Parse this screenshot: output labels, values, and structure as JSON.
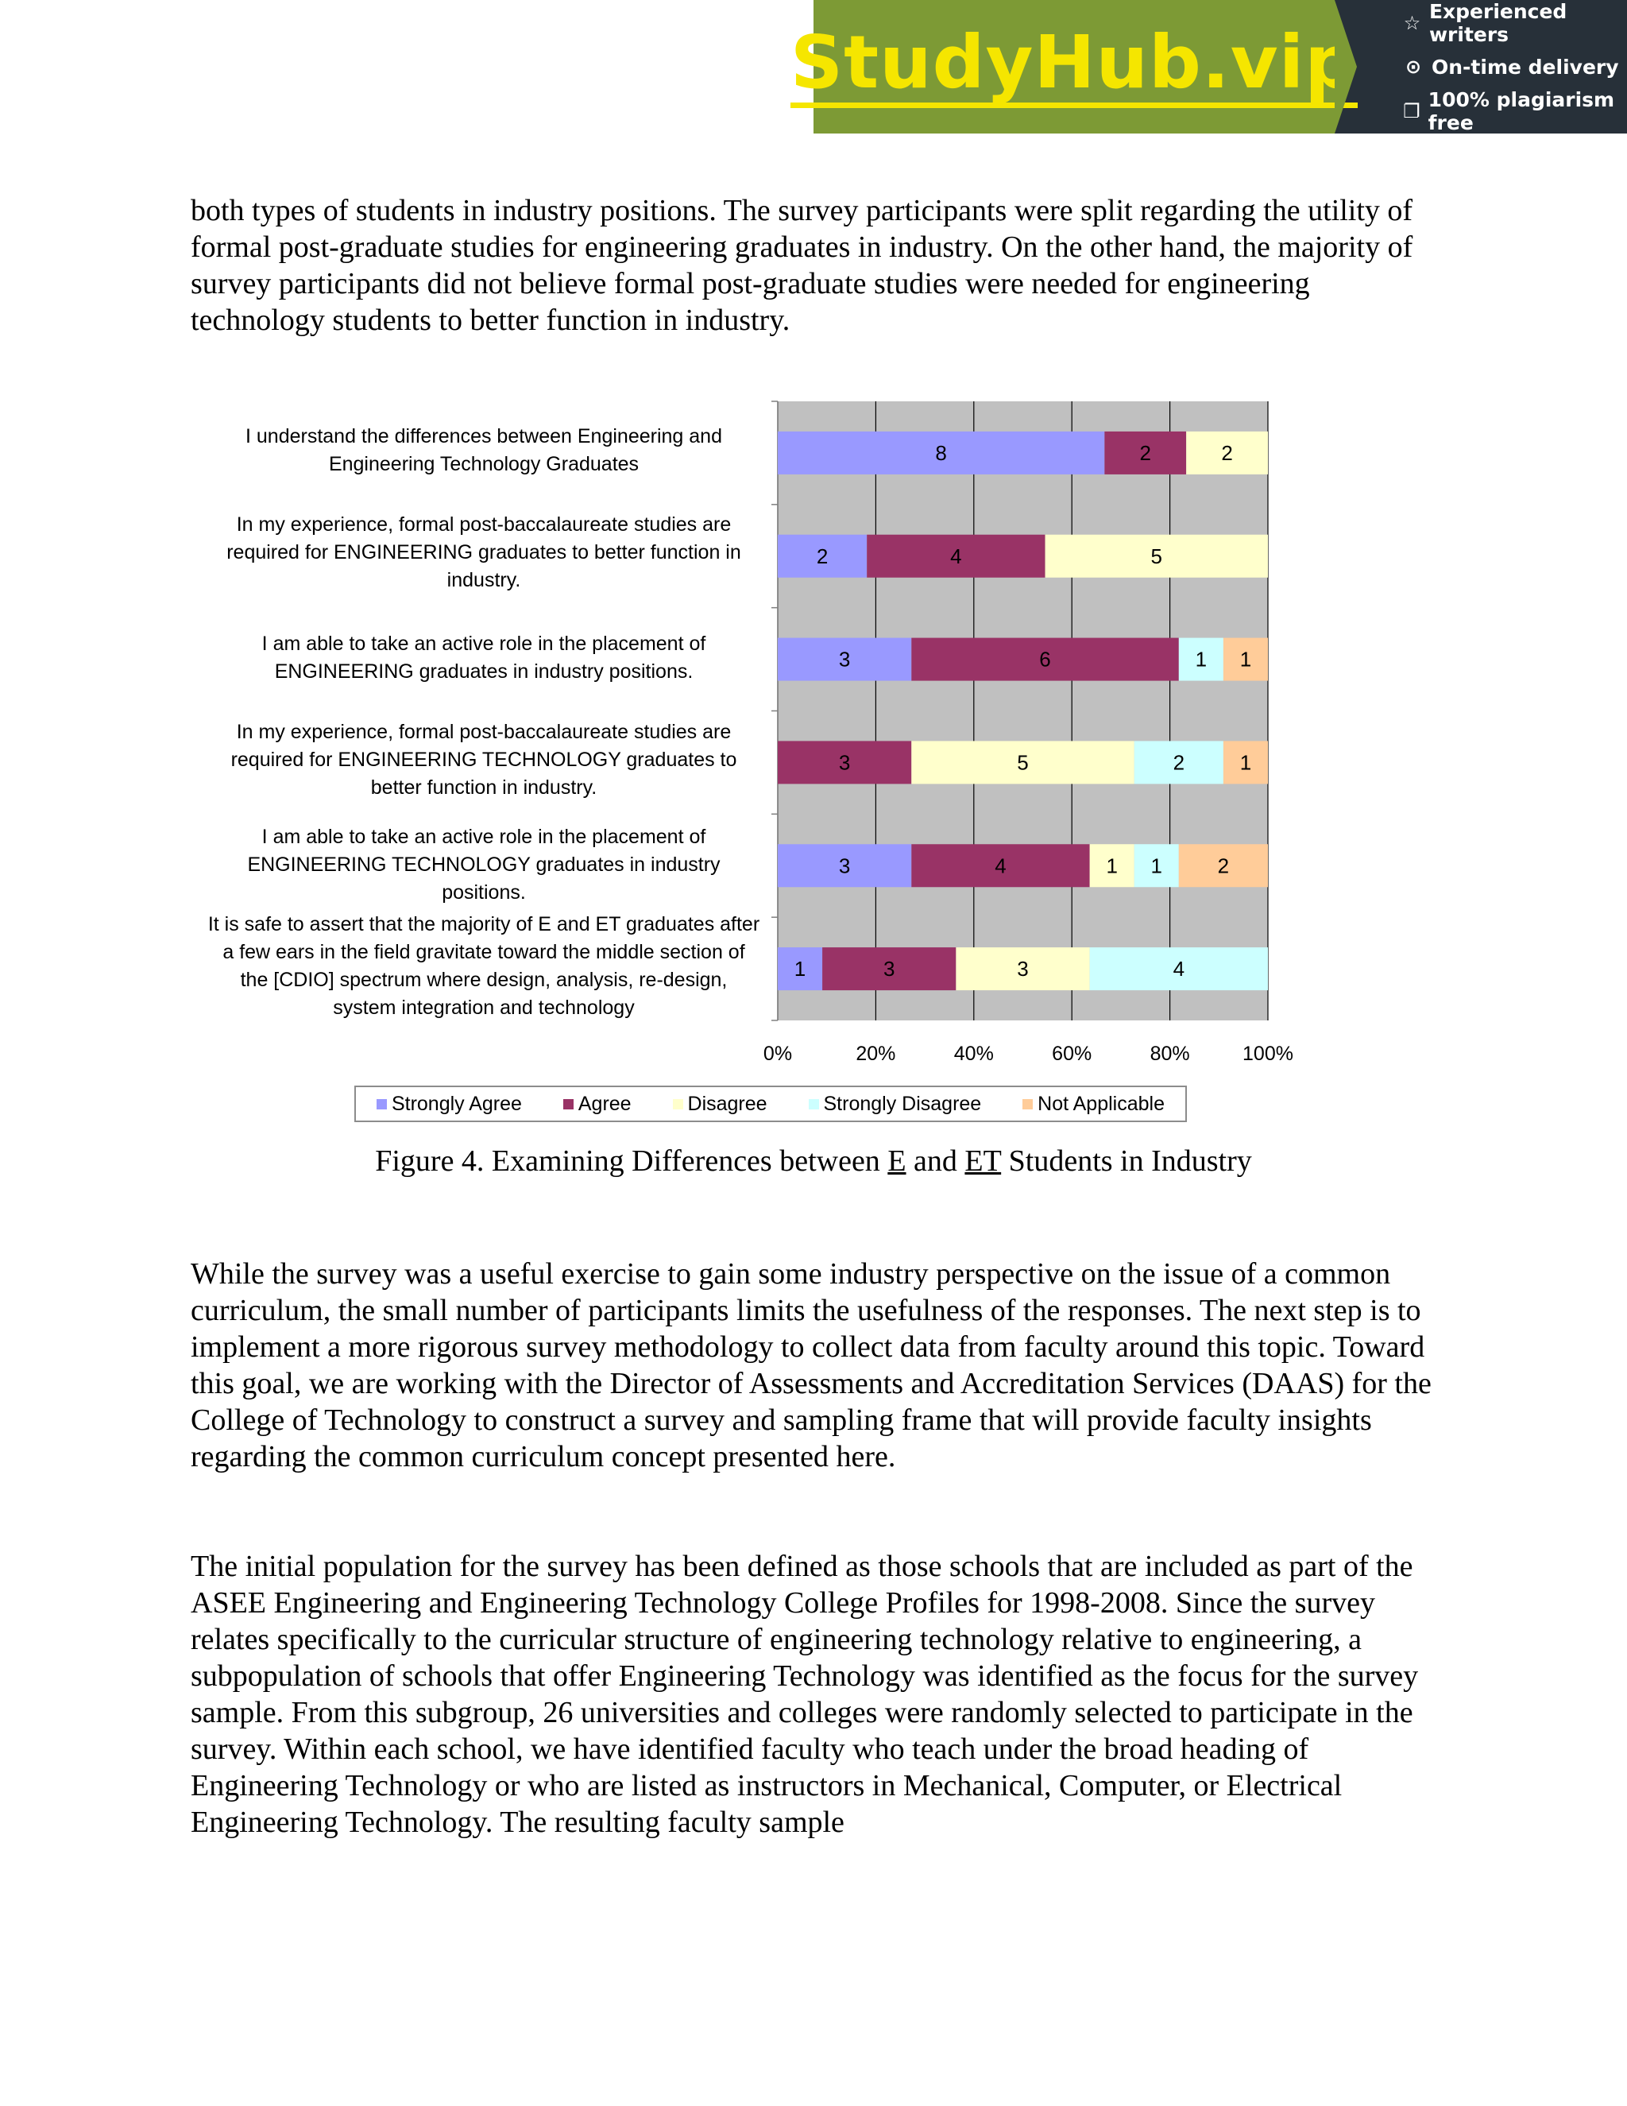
{
  "banner": {
    "logo": "StudyHub.vip",
    "features": [
      {
        "icon": "star-outline-icon",
        "glyph": "☆",
        "text": "Experienced writers"
      },
      {
        "icon": "clock-icon",
        "glyph": "⊙",
        "text": "On-time delivery"
      },
      {
        "icon": "copy-document-icon",
        "glyph": "❐",
        "text": "100% plagiarism free"
      }
    ]
  },
  "paragraphs": {
    "p1": "both types of students in industry positions. The survey participants were split regarding the utility of formal post-graduate studies for engineering graduates in industry. On the other hand, the majority of survey participants did not believe formal post-graduate studies were needed for engineering technology students to better function in industry.",
    "p2": "While the survey was a useful exercise to gain some industry perspective on the issue of a common curriculum, the small number of participants limits the usefulness of the responses. The next step is to implement a more rigorous survey methodology to collect data from faculty around this topic. Toward this goal, we are working with the Director of Assessments and Accreditation Services (DAAS) for the College of Technology to construct a survey and sampling frame that will provide faculty insights regarding the common curriculum concept presented here.",
    "p3": "The initial population for the survey has been defined as those schools that are included as part of the ASEE Engineering and Engineering Technology College Profiles for 1998-2008. Since the survey relates specifically to the curricular structure of engineering technology relative to engineering, a subpopulation of schools that offer Engineering Technology was identified as the focus for the survey sample. From this subgroup, 26 universities and colleges were randomly selected to participate in the survey. Within each school, we have identified faculty who teach under the broad heading of Engineering Technology or who are listed as instructors in Mechanical, Computer, or Electrical Engineering Technology.  The resulting faculty sample"
  },
  "caption": {
    "prefix": "Figure 4. Examining Differences between ",
    "e": "E",
    "mid": " and ",
    "et": "ET",
    "suffix": " Students in Industry"
  },
  "chart_data": {
    "type": "bar",
    "orientation": "horizontal",
    "stacked": "percent",
    "categories": [
      "I understand the differences between Engineering and Engineering Technology Graduates",
      "In my experience, formal post-baccalaureate studies are required for ENGINEERING graduates to better function in industry.",
      "I am able to take an active role in the placement of ENGINEERING graduates in industry positions.",
      "In my experience, formal post-baccalaureate studies are required for ENGINEERING TECHNOLOGY graduates to better function in industry.",
      "I am able to take an active role in the placement of ENGINEERING TECHNOLOGY graduates in industry positions.",
      "It is safe to assert that the majority of E and ET graduates after a few ears in the field gravitate toward the middle section of the [CDIO] spectrum where design, analysis, re-design, system integration and technology"
    ],
    "series": [
      {
        "name": "Strongly Agree",
        "color": "#9999ff",
        "values": [
          8,
          2,
          3,
          0,
          3,
          1
        ]
      },
      {
        "name": "Agree",
        "color": "#993366",
        "values": [
          2,
          4,
          6,
          3,
          4,
          3
        ]
      },
      {
        "name": "Disagree",
        "color": "#ffffcc",
        "values": [
          2,
          5,
          0,
          5,
          1,
          3
        ]
      },
      {
        "name": "Strongly Disagree",
        "color": "#ccffff",
        "values": [
          0,
          0,
          1,
          2,
          1,
          4
        ]
      },
      {
        "name": "Not Applicable",
        "color": "#ffcc99",
        "values": [
          0,
          0,
          1,
          1,
          2,
          0
        ]
      }
    ],
    "xticks": [
      "0%",
      "20%",
      "40%",
      "60%",
      "80%",
      "100%"
    ],
    "xlim": [
      0,
      100
    ],
    "grid": true,
    "plot_background": "#c0c0c0",
    "legend_position": "bottom"
  }
}
